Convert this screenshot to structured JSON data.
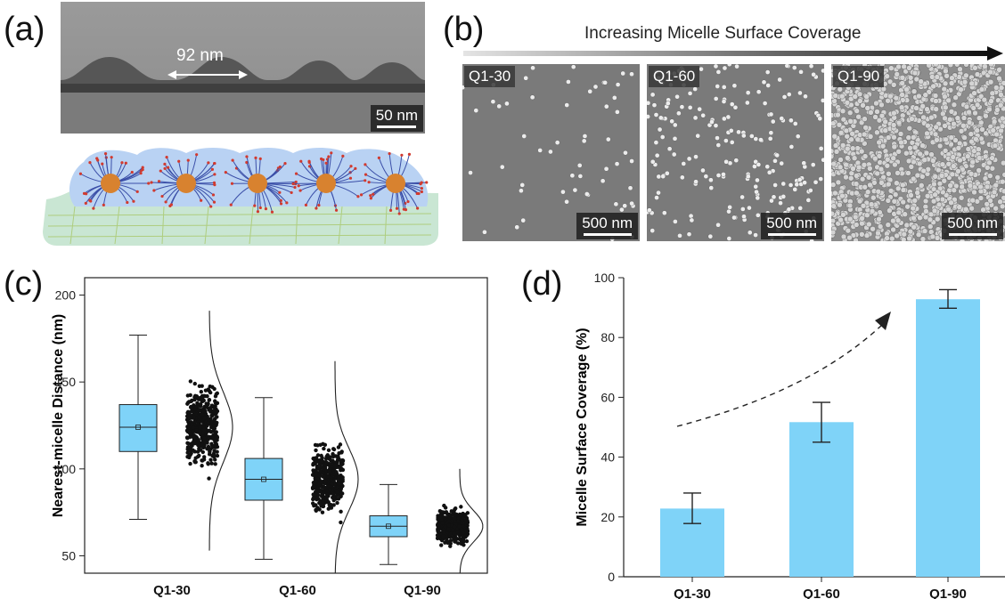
{
  "panels": {
    "a": {
      "letter": "(a)",
      "tem": {
        "distance_label": "92 nm",
        "scale_label": "50 nm"
      }
    },
    "b": {
      "letter": "(b)",
      "arrow_label": "Increasing Micelle Surface Coverage",
      "images": [
        {
          "tag": "Q1-30",
          "scale_label": "500 nm"
        },
        {
          "tag": "Q1-60",
          "scale_label": "500 nm"
        },
        {
          "tag": "Q1-90",
          "scale_label": "500 nm"
        }
      ]
    },
    "c": {
      "letter": "(c)"
    },
    "d": {
      "letter": "(d)"
    }
  },
  "colors": {
    "box_fill": "#7fd3f8",
    "bar_fill": "#7fd3f8",
    "dots": "#111111"
  },
  "chart_data": [
    {
      "panel": "c",
      "type": "box",
      "ylabel": "Nearest-micelle Distance (nm)",
      "categories": [
        "Q1-30",
        "Q1-60",
        "Q1-90"
      ],
      "ylim": [
        40,
        210
      ],
      "yticks": [
        50,
        100,
        150,
        200
      ],
      "boxes": [
        {
          "category": "Q1-30",
          "whisker_low": 71,
          "q1": 110,
          "median": 124,
          "mean": 124,
          "q3": 137,
          "whisker_high": 177,
          "points_min": 53,
          "points_max": 192
        },
        {
          "category": "Q1-60",
          "whisker_low": 48,
          "q1": 82,
          "median": 94,
          "mean": 94,
          "q3": 106,
          "whisker_high": 141,
          "points_min": 40,
          "points_max": 163
        },
        {
          "category": "Q1-90",
          "whisker_low": 45,
          "q1": 61,
          "median": 67,
          "mean": 67,
          "q3": 73,
          "whisker_high": 91,
          "points_min": 40,
          "points_max": 100
        }
      ]
    },
    {
      "panel": "d",
      "type": "bar",
      "ylabel": "Micelle Surface Coverage (%)",
      "categories": [
        "Q1-30",
        "Q1-60",
        "Q1-90"
      ],
      "values": [
        22.8,
        51.7,
        92.8
      ],
      "errors_low": [
        17.8,
        45.0,
        89.8
      ],
      "errors_high": [
        28.0,
        58.3,
        96.0
      ],
      "ylim": [
        0,
        100
      ],
      "yticks": [
        0,
        20,
        40,
        60,
        80,
        100
      ]
    }
  ]
}
